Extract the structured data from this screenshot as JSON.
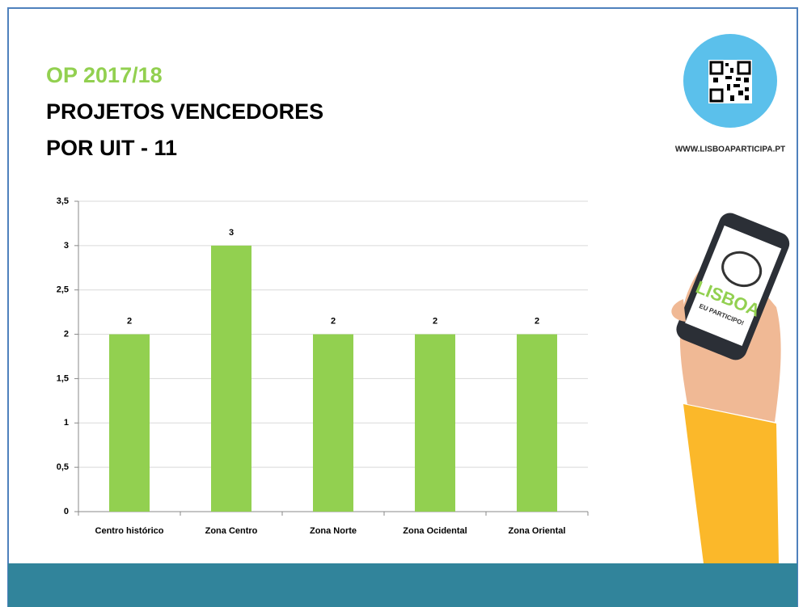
{
  "header": {
    "edition": "OP 2017/18",
    "title_line1": "PROJETOS VENCEDORES",
    "title_line2": "POR UIT - 11"
  },
  "website": "WWW.LISBOAPARTICIPA.PT",
  "phone_logo": {
    "word": "LISBOA",
    "tagline": "EU PARTICIPO!"
  },
  "chart_data": {
    "type": "bar",
    "categories": [
      "Centro histórico",
      "Zona Centro",
      "Zona Norte",
      "Zona Ocidental",
      "Zona Oriental"
    ],
    "values": [
      2,
      3,
      2,
      2,
      2
    ],
    "color": "#92d050",
    "ylim": [
      0,
      3.5
    ],
    "yticks": [
      0,
      {
        "value": 0.5,
        "label": "0,5"
      },
      1,
      {
        "value": 1.5,
        "label": "1,5"
      },
      2,
      {
        "value": 2.5,
        "label": "2,5"
      },
      3,
      {
        "value": 3.5,
        "label": "3,5"
      }
    ],
    "grid": true,
    "data_labels": true
  }
}
